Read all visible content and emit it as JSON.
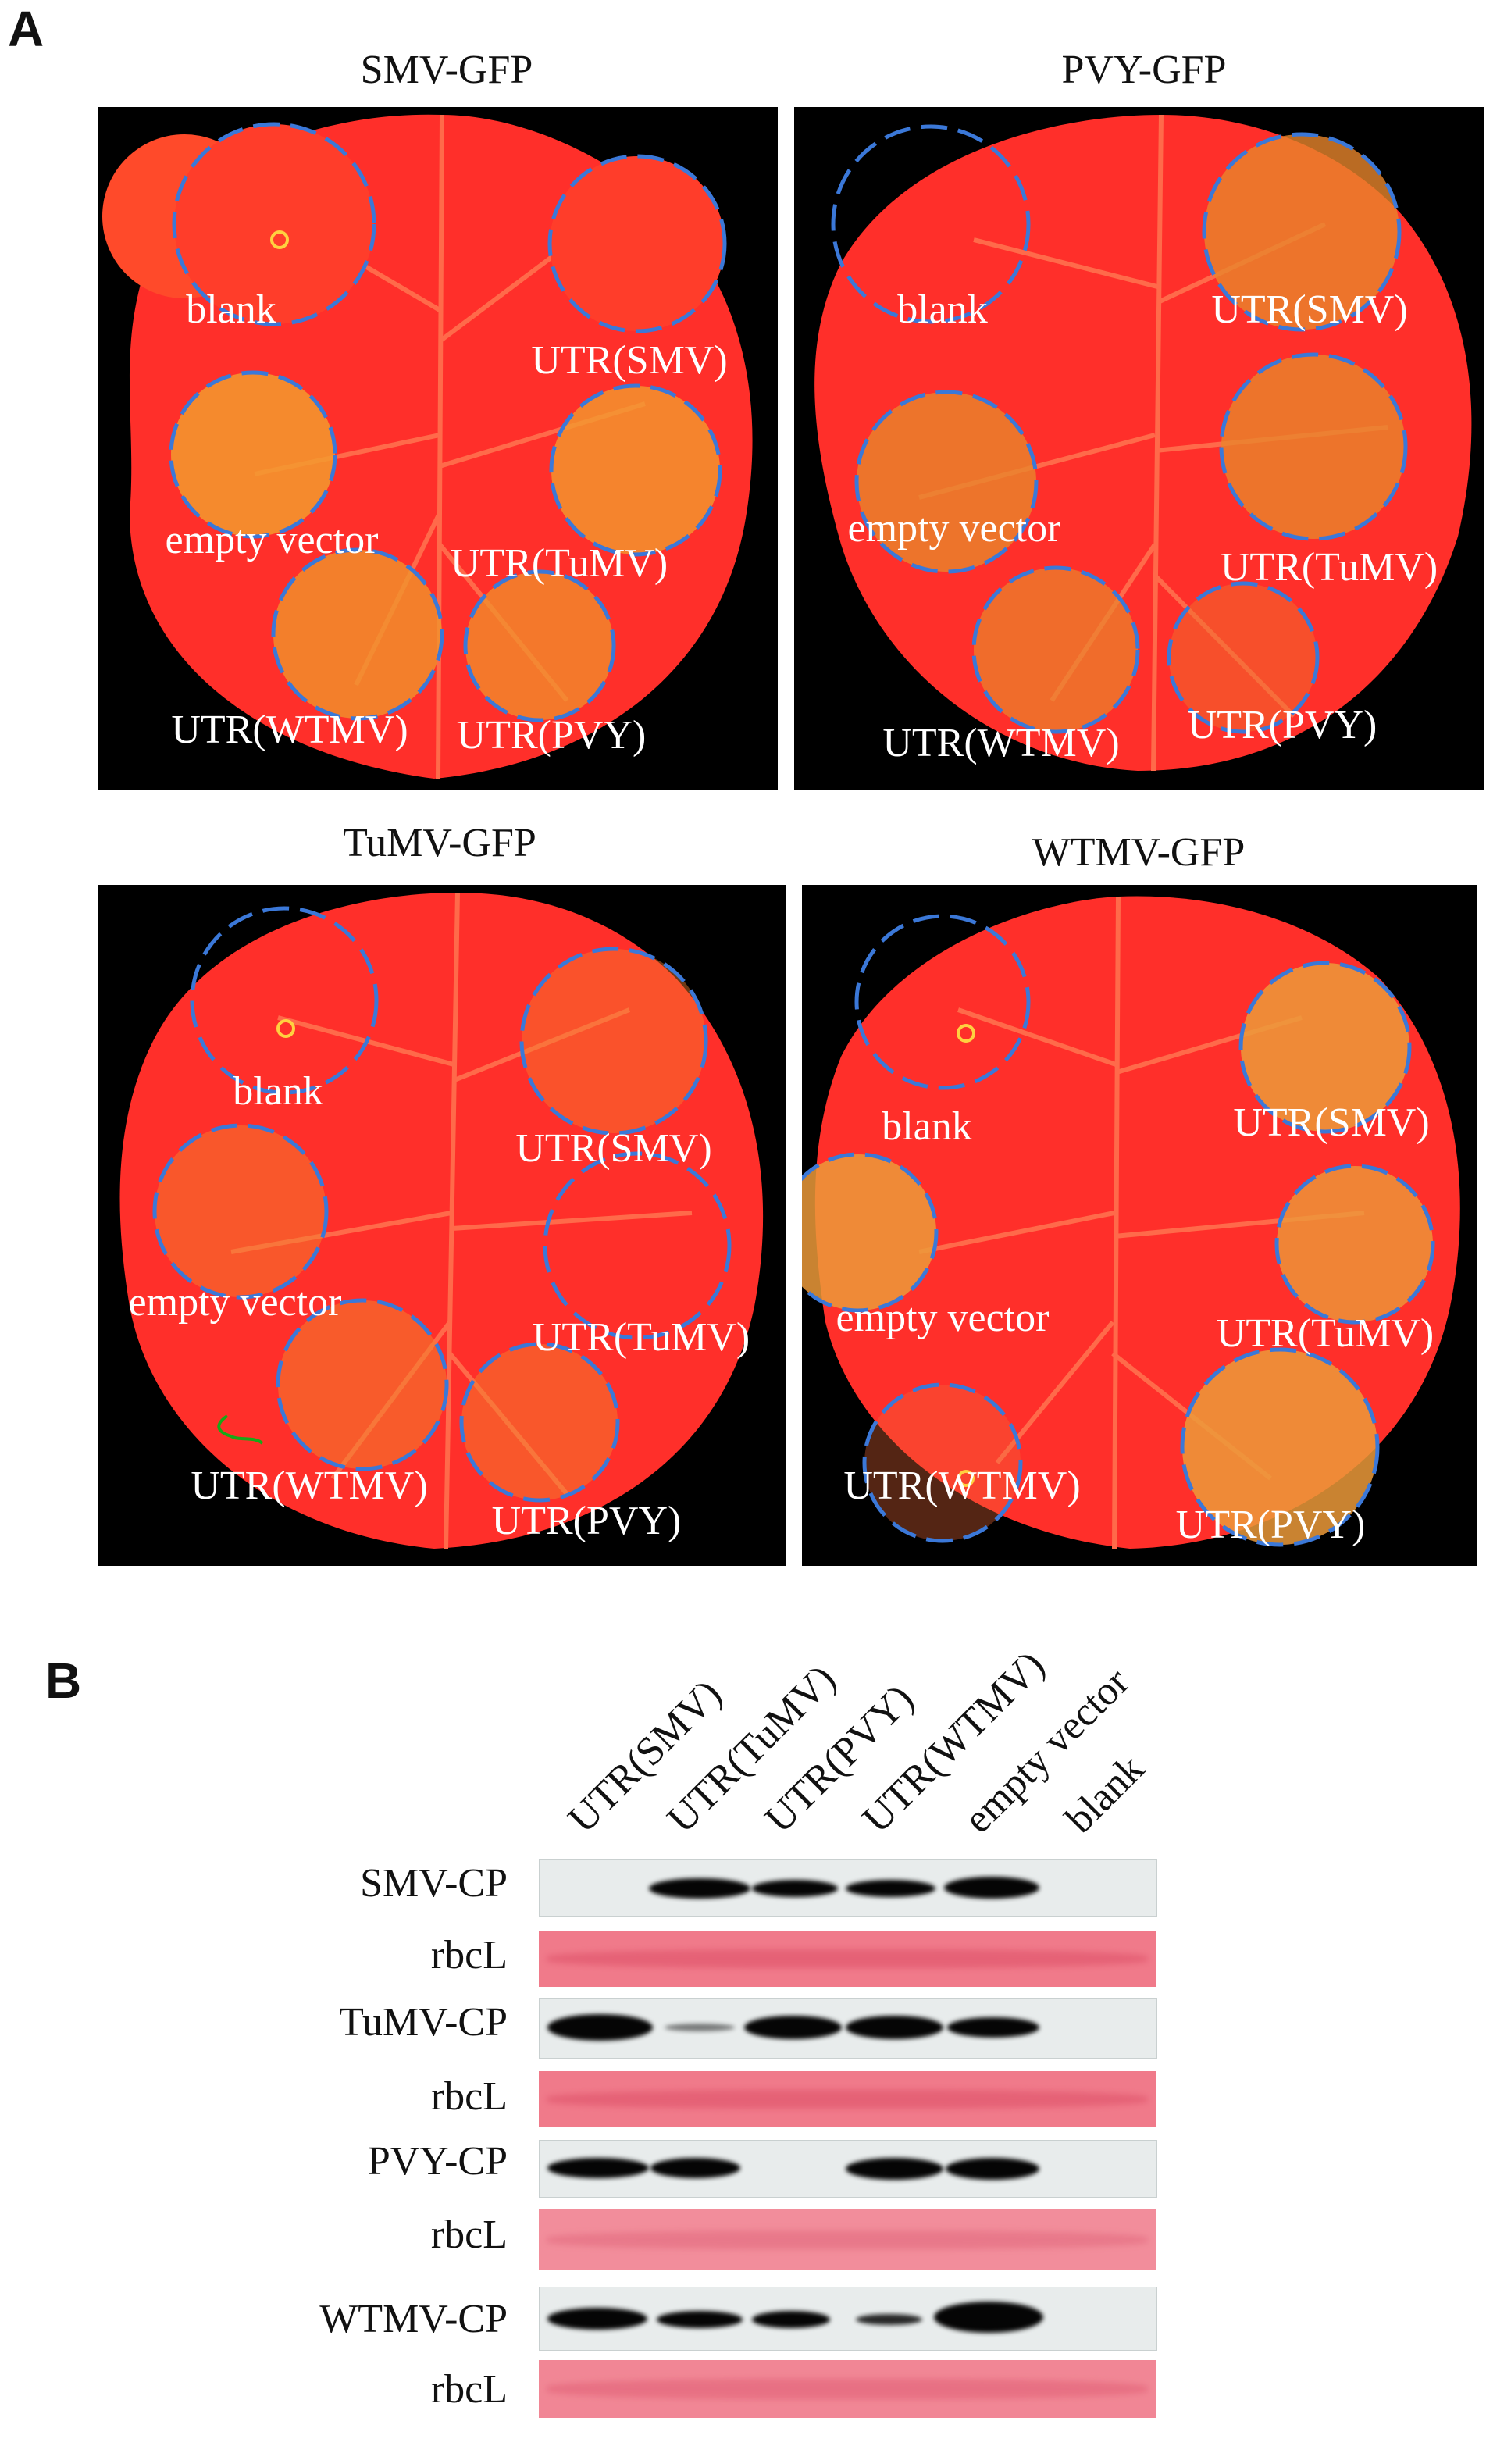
{
  "panel_a": {
    "letter": "A",
    "leaves": [
      {
        "title": "SMV-GFP",
        "labels": {
          "blank": "blank",
          "utr_smv": "UTR(SMV)",
          "empty": "empty vector",
          "utr_tumv": "UTR(TuMV)",
          "utr_wtmv": "UTR(WTMV)",
          "utr_pvy": "UTR(PVY)"
        }
      },
      {
        "title": "PVY-GFP",
        "labels": {
          "blank": "blank",
          "utr_smv": "UTR(SMV)",
          "empty": "empty vector",
          "utr_tumv": "UTR(TuMV)",
          "utr_wtmv": "UTR(WTMV)",
          "utr_pvy": "UTR(PVY)"
        }
      },
      {
        "title": "TuMV-GFP",
        "labels": {
          "blank": "blank",
          "utr_smv": "UTR(SMV)",
          "empty": "empty vector",
          "utr_tumv": "UTR(TuMV)",
          "utr_wtmv": "UTR(WTMV)",
          "utr_pvy": "UTR(PVY)"
        }
      },
      {
        "title": "WTMV-GFP",
        "labels": {
          "blank": "blank",
          "utr_smv": "UTR(SMV)",
          "empty": "empty vector",
          "utr_tumv": "UTR(TuMV)",
          "utr_wtmv": "UTR(WTMV)",
          "utr_pvy": "UTR(PVY)"
        }
      }
    ]
  },
  "panel_b": {
    "letter": "B",
    "lanes": [
      "UTR(SMV)",
      "UTR(TuMV)",
      "UTR(PVY)",
      "UTR(WTMV)",
      "empty vector",
      "blank"
    ],
    "rows": [
      {
        "label": "SMV-CP",
        "kind": "blot"
      },
      {
        "label": "rbcL",
        "kind": "ponceau"
      },
      {
        "label": "TuMV-CP",
        "kind": "blot"
      },
      {
        "label": "rbcL",
        "kind": "ponceau"
      },
      {
        "label": "PVY-CP",
        "kind": "blot"
      },
      {
        "label": "rbcL",
        "kind": "ponceau"
      },
      {
        "label": "WTMV-CP",
        "kind": "blot"
      },
      {
        "label": "rbcL",
        "kind": "ponceau"
      }
    ]
  },
  "colors": {
    "leaf": "#ff2a2a",
    "gfp_patch": "#f59a2a",
    "circle": "#3b78d8",
    "background": "#000000"
  }
}
